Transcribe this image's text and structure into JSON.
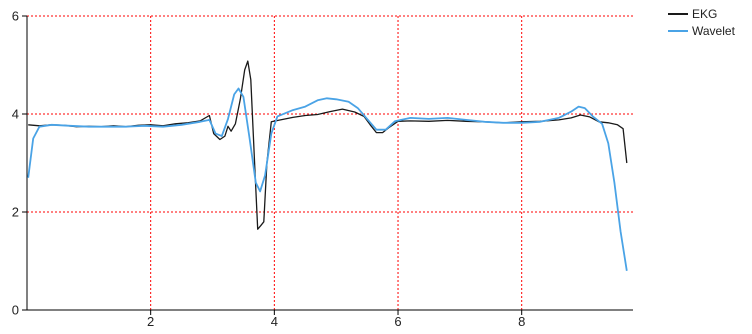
{
  "chart_data": {
    "type": "line",
    "title": "",
    "xlabel": "",
    "ylabel": "",
    "xlim": [
      0,
      9.8
    ],
    "ylim": [
      0,
      6
    ],
    "x_ticks": [
      2,
      4,
      6,
      8
    ],
    "y_ticks": [
      0,
      2,
      4,
      6
    ],
    "grid": true,
    "grid_color": "#ff0000",
    "legend_position": "top-right",
    "series": [
      {
        "name": "EKG",
        "color": "#1a1a1a",
        "points": [
          [
            0.02,
            3.78
          ],
          [
            0.2,
            3.76
          ],
          [
            0.4,
            3.78
          ],
          [
            0.6,
            3.77
          ],
          [
            0.8,
            3.74
          ],
          [
            1.0,
            3.75
          ],
          [
            1.2,
            3.74
          ],
          [
            1.4,
            3.76
          ],
          [
            1.6,
            3.74
          ],
          [
            1.8,
            3.77
          ],
          [
            2.0,
            3.78
          ],
          [
            2.2,
            3.76
          ],
          [
            2.4,
            3.8
          ],
          [
            2.6,
            3.82
          ],
          [
            2.8,
            3.86
          ],
          [
            2.95,
            3.97
          ],
          [
            3.02,
            3.6
          ],
          [
            3.12,
            3.48
          ],
          [
            3.2,
            3.55
          ],
          [
            3.25,
            3.75
          ],
          [
            3.3,
            3.65
          ],
          [
            3.37,
            3.8
          ],
          [
            3.45,
            4.3
          ],
          [
            3.52,
            4.9
          ],
          [
            3.57,
            5.08
          ],
          [
            3.62,
            4.7
          ],
          [
            3.68,
            3.0
          ],
          [
            3.73,
            1.65
          ],
          [
            3.78,
            1.72
          ],
          [
            3.83,
            1.8
          ],
          [
            3.88,
            3.0
          ],
          [
            3.95,
            3.84
          ],
          [
            4.1,
            3.88
          ],
          [
            4.3,
            3.93
          ],
          [
            4.5,
            3.97
          ],
          [
            4.7,
            3.99
          ],
          [
            4.9,
            4.05
          ],
          [
            5.1,
            4.1
          ],
          [
            5.3,
            4.04
          ],
          [
            5.45,
            3.95
          ],
          [
            5.55,
            3.78
          ],
          [
            5.65,
            3.62
          ],
          [
            5.75,
            3.62
          ],
          [
            5.85,
            3.72
          ],
          [
            6.0,
            3.85
          ],
          [
            6.2,
            3.86
          ],
          [
            6.5,
            3.85
          ],
          [
            6.8,
            3.87
          ],
          [
            7.1,
            3.85
          ],
          [
            7.4,
            3.84
          ],
          [
            7.7,
            3.82
          ],
          [
            8.0,
            3.84
          ],
          [
            8.3,
            3.85
          ],
          [
            8.6,
            3.88
          ],
          [
            8.8,
            3.92
          ],
          [
            8.95,
            3.98
          ],
          [
            9.1,
            3.94
          ],
          [
            9.25,
            3.84
          ],
          [
            9.4,
            3.82
          ],
          [
            9.55,
            3.78
          ],
          [
            9.64,
            3.7
          ],
          [
            9.7,
            3.0
          ]
        ]
      },
      {
        "name": "Wavelet",
        "color": "#4aa3e6",
        "points": [
          [
            0.02,
            2.7
          ],
          [
            0.1,
            3.5
          ],
          [
            0.2,
            3.74
          ],
          [
            0.4,
            3.78
          ],
          [
            0.7,
            3.76
          ],
          [
            1.0,
            3.74
          ],
          [
            1.3,
            3.74
          ],
          [
            1.6,
            3.74
          ],
          [
            1.9,
            3.76
          ],
          [
            2.2,
            3.74
          ],
          [
            2.5,
            3.78
          ],
          [
            2.8,
            3.84
          ],
          [
            2.95,
            3.88
          ],
          [
            3.05,
            3.6
          ],
          [
            3.15,
            3.55
          ],
          [
            3.25,
            3.9
          ],
          [
            3.35,
            4.4
          ],
          [
            3.42,
            4.52
          ],
          [
            3.5,
            4.35
          ],
          [
            3.6,
            3.5
          ],
          [
            3.7,
            2.6
          ],
          [
            3.77,
            2.42
          ],
          [
            3.85,
            2.75
          ],
          [
            3.95,
            3.6
          ],
          [
            4.05,
            3.95
          ],
          [
            4.3,
            4.08
          ],
          [
            4.5,
            4.15
          ],
          [
            4.7,
            4.28
          ],
          [
            4.85,
            4.32
          ],
          [
            5.0,
            4.3
          ],
          [
            5.2,
            4.25
          ],
          [
            5.35,
            4.12
          ],
          [
            5.5,
            3.9
          ],
          [
            5.65,
            3.68
          ],
          [
            5.8,
            3.68
          ],
          [
            5.95,
            3.85
          ],
          [
            6.2,
            3.92
          ],
          [
            6.5,
            3.9
          ],
          [
            6.8,
            3.92
          ],
          [
            7.1,
            3.88
          ],
          [
            7.4,
            3.84
          ],
          [
            7.7,
            3.82
          ],
          [
            8.0,
            3.82
          ],
          [
            8.3,
            3.84
          ],
          [
            8.6,
            3.92
          ],
          [
            8.8,
            4.05
          ],
          [
            8.92,
            4.15
          ],
          [
            9.02,
            4.12
          ],
          [
            9.15,
            3.95
          ],
          [
            9.3,
            3.8
          ],
          [
            9.4,
            3.4
          ],
          [
            9.5,
            2.6
          ],
          [
            9.6,
            1.6
          ],
          [
            9.7,
            0.8
          ]
        ]
      }
    ]
  }
}
